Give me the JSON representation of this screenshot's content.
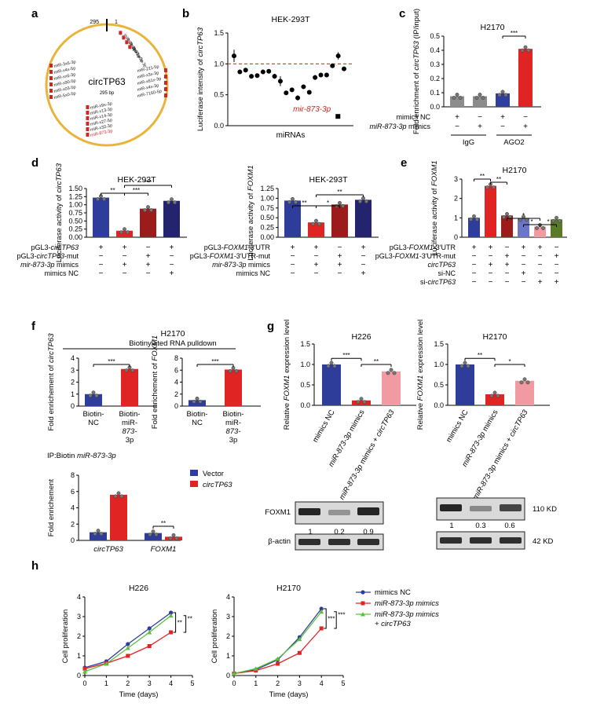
{
  "panel_labels": [
    "a",
    "b",
    "c",
    "d",
    "e",
    "f",
    "g",
    "h"
  ],
  "a": {
    "center_label": "circTP63",
    "length_label": "295 bp",
    "top_ticks": [
      "295",
      "1"
    ],
    "mirna_cluster_labels": [
      [
        "miR-2x-3p",
        "miR-1x9-3p",
        "miR-x1x-3p",
        "miR-x0x-3p"
      ],
      [
        "miR-3x6-3p",
        "miR-x4x-5p",
        "miR-xx6-3p",
        "miR-x90-5p",
        "miR-x03-5p",
        "miR-5x0-5p"
      ],
      [
        "miR-211-5p",
        "miR-x3x-3p",
        "miR-x61x-3p",
        "miR-x4x-3p",
        "miR-7160-5p"
      ],
      [
        "miR-x9x-3p",
        "miR-x13-3p",
        "miR-x14-3p",
        "miR-x27-5p",
        "miR-x32-3p",
        "miR-873-3p"
      ]
    ]
  },
  "chart_data": [
    {
      "id": "b",
      "type": "scatter",
      "title": "HEK-293T",
      "xlabel": "miRNAs",
      "ylabel": "Luciferase intensity of circTP63",
      "ylim": [
        0,
        1.5
      ],
      "yticks": [
        "0.0",
        "0.5",
        "1.0",
        "1.5"
      ],
      "reference_line": 1.0,
      "values": [
        1.13,
        0.87,
        0.9,
        0.8,
        0.81,
        0.87,
        0.88,
        0.8,
        0.72,
        0.53,
        0.58,
        0.45,
        0.63,
        0.54,
        0.78,
        0.82,
        0.82,
        0.97,
        1.13,
        0.92
      ],
      "errors": [
        0.1,
        0.02,
        0.02,
        0.02,
        0.03,
        0.02,
        0.03,
        0.04,
        0.08,
        0.03,
        0.03,
        0.04,
        0.03,
        0.03,
        0.04,
        0.03,
        0.03,
        0.03,
        0.06,
        0.02
      ],
      "highlight": {
        "label": "mir-873-3p",
        "value": 0.15
      }
    },
    {
      "id": "c",
      "type": "bar",
      "title": "H2170",
      "ylabel": "Fold enrichment of circTP63 (IP/input)",
      "ylim": [
        0,
        0.5
      ],
      "yticks": [
        "0.0",
        "0.1",
        "0.2",
        "0.3",
        "0.4",
        "0.5"
      ],
      "values": [
        0.075,
        0.075,
        0.095,
        0.41
      ],
      "colors": [
        "#8c8c8c",
        "#8c8c8c",
        "#2f3f9f",
        "#e02424"
      ],
      "group_labels": [
        "IgG",
        "AGO2"
      ],
      "rows": [
        {
          "label": "mimics NC",
          "signs": [
            "+",
            "−",
            "+",
            "−"
          ]
        },
        {
          "label": "miR-873-3p mimics",
          "signs": [
            "−",
            "+",
            "−",
            "+"
          ]
        }
      ],
      "significance": [
        "***"
      ]
    },
    {
      "id": "d1",
      "type": "bar",
      "title": "HEK-293T",
      "ylabel": "Luciferase activity of circTP63",
      "ylim": [
        0,
        1.5
      ],
      "yticks": [
        "0.00",
        "0.25",
        "0.50",
        "0.75",
        "1.00",
        "1.25",
        "1.50"
      ],
      "values": [
        1.22,
        0.2,
        0.88,
        1.12
      ],
      "colors": [
        "#2e3d9a",
        "#e02424",
        "#9c1c1c",
        "#24246e"
      ],
      "rows": [
        {
          "label": "pGL3-circTP63",
          "signs": [
            "+",
            "+",
            "−",
            "+"
          ]
        },
        {
          "label": "pGL3-circTP63-mut",
          "signs": [
            "−",
            "−",
            "+",
            "−"
          ]
        },
        {
          "label": "mir-873-3p mimics",
          "signs": [
            "−",
            "+",
            "+",
            "−"
          ]
        },
        {
          "label": "mimics NC",
          "signs": [
            "−",
            "−",
            "−",
            "+"
          ]
        }
      ],
      "significance": [
        "**",
        "***",
        "***"
      ]
    },
    {
      "id": "d2",
      "type": "bar",
      "title": "HEK-293T",
      "ylabel": "Luciferase activity of FOXM1",
      "ylim": [
        0,
        1.25
      ],
      "yticks": [
        "0.00",
        "0.25",
        "0.50",
        "0.75",
        "1.00",
        "1.25"
      ],
      "values": [
        0.94,
        0.38,
        0.84,
        0.96
      ],
      "colors": [
        "#2e3d9a",
        "#e02424",
        "#9c1c1c",
        "#24246e"
      ],
      "rows": [
        {
          "label": "pGL3-FOXM1-3′UTR",
          "signs": [
            "+",
            "+",
            "−",
            "+"
          ]
        },
        {
          "label": "pGL3-FOXM1-3′UTR-mut",
          "signs": [
            "−",
            "−",
            "+",
            "−"
          ]
        },
        {
          "label": "mir-873-3p mimics",
          "signs": [
            "−",
            "+",
            "+",
            "−"
          ]
        },
        {
          "label": "mimics NC",
          "signs": [
            "−",
            "−",
            "−",
            "+"
          ]
        }
      ],
      "significance": [
        "**",
        "*",
        "**"
      ]
    },
    {
      "id": "e",
      "type": "bar",
      "title": "H2170",
      "ylabel": "Luciferase activity of FOXM1",
      "ylim": [
        0,
        3
      ],
      "yticks": [
        "0",
        "1",
        "2",
        "3"
      ],
      "values": [
        1.0,
        2.65,
        1.12,
        0.98,
        0.55,
        0.92
      ],
      "colors": [
        "#2e3d9a",
        "#e02424",
        "#9c1c1c",
        "#6b76c7",
        "#f29aa1",
        "#5a7a25"
      ],
      "rows": [
        {
          "label": "pGL3-FOXM1-3′UTR",
          "signs": [
            "+",
            "+",
            "−",
            "+",
            "+",
            "−"
          ]
        },
        {
          "label": "pGL3-FOXM1-3′UTR-mut",
          "signs": [
            "−",
            "−",
            "+",
            "−",
            "−",
            "+"
          ]
        },
        {
          "label": "circTP63",
          "signs": [
            "−",
            "+",
            "+",
            "−",
            "−",
            "−"
          ]
        },
        {
          "label": "si-NC",
          "signs": [
            "−",
            "−",
            "−",
            "+",
            "−",
            "−"
          ]
        },
        {
          "label": "si-circTP63",
          "signs": [
            "−",
            "−",
            "−",
            "−",
            "+",
            "+"
          ]
        }
      ],
      "significance": [
        "**",
        "**",
        "*",
        "*",
        "*"
      ]
    },
    {
      "id": "f1",
      "type": "bar",
      "ylabel": "Fold enrichement of circTP63",
      "ylim": [
        0,
        4
      ],
      "yticks": [
        "0",
        "1",
        "2",
        "3",
        "4"
      ],
      "categories": [
        "Biotin-NC",
        "Biotin-miR-873-3p"
      ],
      "values": [
        1.0,
        3.1
      ],
      "colors": [
        "#2e3d9a",
        "#e02424"
      ],
      "significance": [
        "***"
      ]
    },
    {
      "id": "f2",
      "type": "bar",
      "ylabel": "Fold enrichement of FOXM1",
      "ylim": [
        0,
        8
      ],
      "yticks": [
        "0",
        "2",
        "4",
        "6",
        "8"
      ],
      "categories": [
        "Biotin-NC",
        "Biotin-miR-873-3p"
      ],
      "values": [
        1.0,
        6.1
      ],
      "colors": [
        "#2e3d9a",
        "#e02424"
      ],
      "significance": [
        "***"
      ]
    },
    {
      "id": "f3",
      "type": "bar",
      "title": "IP:Biotin miR-873-3p",
      "ylabel": "Fold enrichement",
      "ylim": [
        0,
        8
      ],
      "yticks": [
        "0",
        "2",
        "4",
        "6",
        "8"
      ],
      "categories": [
        "circTP63",
        "FOXM1"
      ],
      "series": [
        {
          "name": "Vector",
          "values": [
            1.0,
            0.9
          ],
          "color": "#2e3d9a"
        },
        {
          "name": "circTP63",
          "values": [
            5.6,
            0.45
          ],
          "color": "#e02424"
        }
      ],
      "significance": [
        "**"
      ]
    },
    {
      "id": "g1",
      "type": "bar",
      "title": "H226",
      "ylabel": "Relative FOXM1 expression level",
      "ylim": [
        0,
        1.5
      ],
      "yticks": [
        "0.0",
        "0.5",
        "1.0",
        "1.5"
      ],
      "categories": [
        "mimics NC",
        "miR-873-3p mimics",
        "miR-873-3p mimics + circTP63"
      ],
      "values": [
        1.0,
        0.12,
        0.83
      ],
      "colors": [
        "#2e3d9a",
        "#e02424",
        "#f29aa1"
      ],
      "significance": [
        "***",
        "**"
      ]
    },
    {
      "id": "g2",
      "type": "bar",
      "title": "H2170",
      "ylabel": "Relative FOXM1 expression level",
      "ylim": [
        0,
        1.5
      ],
      "yticks": [
        "0.0",
        "0.5",
        "1.0",
        "1.5"
      ],
      "categories": [
        "mimics NC",
        "miR-873-3p mimics",
        "miR-873-3p mimics + circTP63"
      ],
      "values": [
        1.0,
        0.27,
        0.6
      ],
      "colors": [
        "#2e3d9a",
        "#e02424",
        "#f29aa1"
      ],
      "significance": [
        "**",
        "*"
      ]
    },
    {
      "id": "h1",
      "type": "line",
      "title": "H226",
      "xlabel": "Time (days)",
      "ylabel": "Cell proliferation",
      "xlim": [
        0,
        5
      ],
      "ylim": [
        0,
        4
      ],
      "x": [
        0,
        1,
        2,
        3,
        4
      ],
      "series": [
        {
          "name": "mimics NC",
          "values": [
            0.4,
            0.72,
            1.6,
            2.4,
            3.2
          ],
          "color": "#2e3d9a",
          "marker": "circle"
        },
        {
          "name": "miR-873-3p mimics",
          "values": [
            0.35,
            0.62,
            1.0,
            1.5,
            2.2
          ],
          "color": "#e02424",
          "marker": "square"
        },
        {
          "name": "miR-873-3p mimics + circTP63",
          "values": [
            0.2,
            0.6,
            1.4,
            2.2,
            3.05
          ],
          "color": "#5cbf3f",
          "marker": "triangle"
        }
      ],
      "significance": [
        "**",
        "**"
      ]
    },
    {
      "id": "h2",
      "type": "line",
      "title": "H2170",
      "xlabel": "Time (days)",
      "ylabel": "Cell proliferation",
      "xlim": [
        0,
        5
      ],
      "ylim": [
        0,
        4
      ],
      "x": [
        0,
        1,
        2,
        3,
        4
      ],
      "series": [
        {
          "name": "mimics NC",
          "values": [
            0.1,
            0.3,
            0.8,
            1.95,
            3.4
          ],
          "color": "#2e3d9a",
          "marker": "circle"
        },
        {
          "name": "miR-873-3p mimics",
          "values": [
            0.1,
            0.25,
            0.6,
            1.15,
            2.4
          ],
          "color": "#e02424",
          "marker": "square"
        },
        {
          "name": "miR-873-3p mimics + circTP63",
          "values": [
            0.1,
            0.35,
            0.85,
            1.85,
            3.25
          ],
          "color": "#5cbf3f",
          "marker": "triangle"
        }
      ],
      "significance": [
        "***",
        "***"
      ]
    }
  ],
  "f_header": {
    "cell_line": "H2170",
    "caption": "Biotinylated RNA pulldown"
  },
  "g_blot": {
    "protein": "FOXM1",
    "loading_control": "β-actin",
    "h226_values": [
      "1",
      "0.2",
      "0.9"
    ],
    "h2170_values": [
      "1",
      "0.3",
      "0.6"
    ],
    "sizes": [
      "110 KD",
      "42 KD"
    ]
  }
}
